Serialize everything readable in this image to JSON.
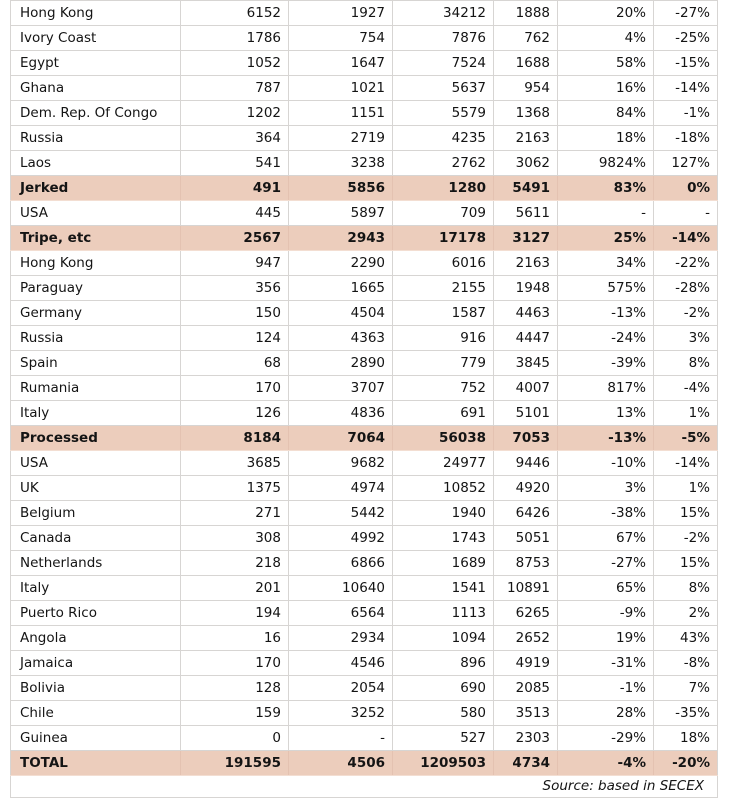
{
  "colors": {
    "section_bg": "#eccdbc",
    "grid": "#d7d5d3",
    "text": "#141414"
  },
  "footer": {
    "source": "Source: based in SECEX"
  },
  "rows": [
    {
      "type": "data",
      "label": "Hong Kong",
      "values": [
        "6152",
        "1927",
        "34212",
        "1888",
        "20%",
        "-27%"
      ]
    },
    {
      "type": "data",
      "label": "Ivory Coast",
      "values": [
        "1786",
        "754",
        "7876",
        "762",
        "4%",
        "-25%"
      ]
    },
    {
      "type": "data",
      "label": "Egypt",
      "values": [
        "1052",
        "1647",
        "7524",
        "1688",
        "58%",
        "-15%"
      ]
    },
    {
      "type": "data",
      "label": "Ghana",
      "values": [
        "787",
        "1021",
        "5637",
        "954",
        "16%",
        "-14%"
      ]
    },
    {
      "type": "data",
      "label": "Dem. Rep. Of Congo",
      "values": [
        "1202",
        "1151",
        "5579",
        "1368",
        "84%",
        "-1%"
      ]
    },
    {
      "type": "data",
      "label": "Russia",
      "values": [
        "364",
        "2719",
        "4235",
        "2163",
        "18%",
        "-18%"
      ]
    },
    {
      "type": "data",
      "label": "Laos",
      "values": [
        "541",
        "3238",
        "2762",
        "3062",
        "9824%",
        "127%"
      ]
    },
    {
      "type": "section",
      "label": "Jerked",
      "values": [
        "491",
        "5856",
        "1280",
        "5491",
        "83%",
        "0%"
      ]
    },
    {
      "type": "data",
      "label": "USA",
      "values": [
        "445",
        "5897",
        "709",
        "5611",
        "-",
        "-"
      ]
    },
    {
      "type": "section",
      "label": "Tripe, etc",
      "values": [
        "2567",
        "2943",
        "17178",
        "3127",
        "25%",
        "-14%"
      ]
    },
    {
      "type": "data",
      "label": "Hong Kong",
      "values": [
        "947",
        "2290",
        "6016",
        "2163",
        "34%",
        "-22%"
      ]
    },
    {
      "type": "data",
      "label": "Paraguay",
      "values": [
        "356",
        "1665",
        "2155",
        "1948",
        "575%",
        "-28%"
      ]
    },
    {
      "type": "data",
      "label": "Germany",
      "values": [
        "150",
        "4504",
        "1587",
        "4463",
        "-13%",
        "-2%"
      ]
    },
    {
      "type": "data",
      "label": "Russia",
      "values": [
        "124",
        "4363",
        "916",
        "4447",
        "-24%",
        "3%"
      ]
    },
    {
      "type": "data",
      "label": "Spain",
      "values": [
        "68",
        "2890",
        "779",
        "3845",
        "-39%",
        "8%"
      ]
    },
    {
      "type": "data",
      "label": "Rumania",
      "values": [
        "170",
        "3707",
        "752",
        "4007",
        "817%",
        "-4%"
      ]
    },
    {
      "type": "data",
      "label": "Italy",
      "values": [
        "126",
        "4836",
        "691",
        "5101",
        "13%",
        "1%"
      ]
    },
    {
      "type": "section",
      "label": "Processed",
      "values": [
        "8184",
        "7064",
        "56038",
        "7053",
        "-13%",
        "-5%"
      ]
    },
    {
      "type": "data",
      "label": "USA",
      "values": [
        "3685",
        "9682",
        "24977",
        "9446",
        "-10%",
        "-14%"
      ]
    },
    {
      "type": "data",
      "label": "UK",
      "values": [
        "1375",
        "4974",
        "10852",
        "4920",
        "3%",
        "1%"
      ]
    },
    {
      "type": "data",
      "label": "Belgium",
      "values": [
        "271",
        "5442",
        "1940",
        "6426",
        "-38%",
        "15%"
      ]
    },
    {
      "type": "data",
      "label": "Canada",
      "values": [
        "308",
        "4992",
        "1743",
        "5051",
        "67%",
        "-2%"
      ]
    },
    {
      "type": "data",
      "label": "Netherlands",
      "values": [
        "218",
        "6866",
        "1689",
        "8753",
        "-27%",
        "15%"
      ]
    },
    {
      "type": "data",
      "label": "Italy",
      "values": [
        "201",
        "10640",
        "1541",
        "10891",
        "65%",
        "8%"
      ]
    },
    {
      "type": "data",
      "label": "Puerto Rico",
      "values": [
        "194",
        "6564",
        "1113",
        "6265",
        "-9%",
        "2%"
      ]
    },
    {
      "type": "data",
      "label": "Angola",
      "values": [
        "16",
        "2934",
        "1094",
        "2652",
        "19%",
        "43%"
      ]
    },
    {
      "type": "data",
      "label": "Jamaica",
      "values": [
        "170",
        "4546",
        "896",
        "4919",
        "-31%",
        "-8%"
      ]
    },
    {
      "type": "data",
      "label": "Bolivia",
      "values": [
        "128",
        "2054",
        "690",
        "2085",
        "-1%",
        "7%"
      ]
    },
    {
      "type": "data",
      "label": "Chile",
      "values": [
        "159",
        "3252",
        "580",
        "3513",
        "28%",
        "-35%"
      ]
    },
    {
      "type": "data",
      "label": "Guinea",
      "values": [
        "0",
        "-",
        "527",
        "2303",
        "-29%",
        "18%"
      ]
    },
    {
      "type": "total",
      "label": "TOTAL",
      "values": [
        "191595",
        "4506",
        "1209503",
        "4734",
        "-4%",
        "-20%"
      ]
    }
  ]
}
